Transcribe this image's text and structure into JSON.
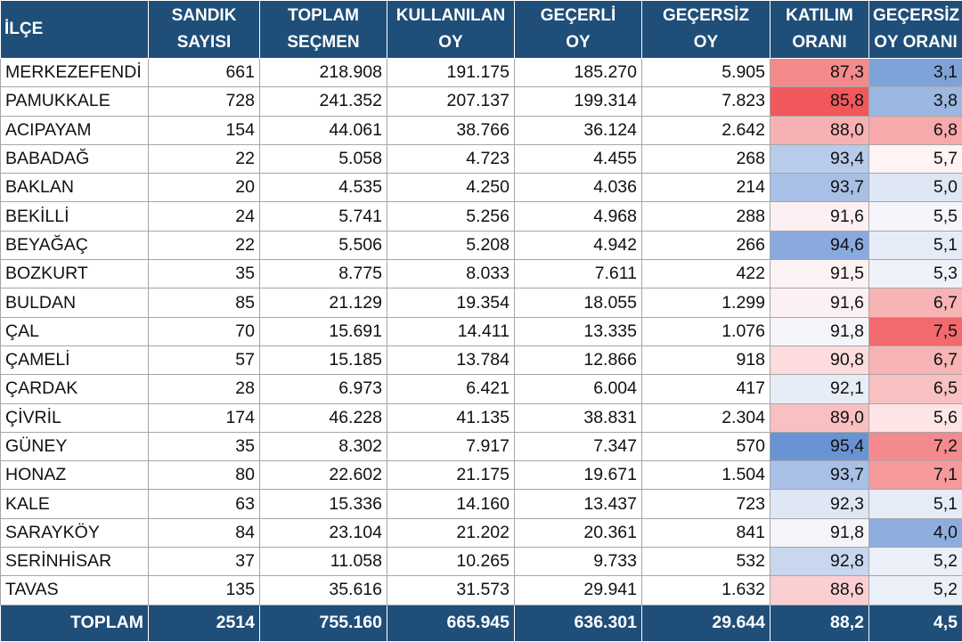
{
  "headers": [
    [
      "İLÇE"
    ],
    [
      "SANDIK",
      "SAYISI"
    ],
    [
      "TOPLAM",
      "SEÇMEN"
    ],
    [
      "KULLANILAN",
      "OY"
    ],
    [
      "GEÇERLİ",
      "OY"
    ],
    [
      "GEÇERSİZ",
      "OY"
    ],
    [
      "KATILIM",
      "ORANI"
    ],
    [
      "GEÇERSİZ",
      "OY ORANI"
    ]
  ],
  "rows": [
    [
      "MERKEZEFENDİ",
      "661",
      "218.908",
      "191.175",
      "185.270",
      "5.905",
      "87,3",
      "3,1"
    ],
    [
      "PAMUKKALE",
      "728",
      "241.352",
      "207.137",
      "199.314",
      "7.823",
      "85,8",
      "3,8"
    ],
    [
      "ACIPAYAM",
      "154",
      "44.061",
      "38.766",
      "36.124",
      "2.642",
      "88,0",
      "6,8"
    ],
    [
      "BABADAĞ",
      "22",
      "5.058",
      "4.723",
      "4.455",
      "268",
      "93,4",
      "5,7"
    ],
    [
      "BAKLAN",
      "20",
      "4.535",
      "4.250",
      "4.036",
      "214",
      "93,7",
      "5,0"
    ],
    [
      "BEKİLLİ",
      "24",
      "5.741",
      "5.256",
      "4.968",
      "288",
      "91,6",
      "5,5"
    ],
    [
      "BEYAĞAÇ",
      "22",
      "5.506",
      "5.208",
      "4.942",
      "266",
      "94,6",
      "5,1"
    ],
    [
      "BOZKURT",
      "35",
      "8.775",
      "8.033",
      "7.611",
      "422",
      "91,5",
      "5,3"
    ],
    [
      "BULDAN",
      "85",
      "21.129",
      "19.354",
      "18.055",
      "1.299",
      "91,6",
      "6,7"
    ],
    [
      "ÇAL",
      "70",
      "15.691",
      "14.411",
      "13.335",
      "1.076",
      "91,8",
      "7,5"
    ],
    [
      "ÇAMELİ",
      "57",
      "15.185",
      "13.784",
      "12.866",
      "918",
      "90,8",
      "6,7"
    ],
    [
      "ÇARDAK",
      "28",
      "6.973",
      "6.421",
      "6.004",
      "417",
      "92,1",
      "6,5"
    ],
    [
      "ÇİVRİL",
      "174",
      "46.228",
      "41.135",
      "38.831",
      "2.304",
      "89,0",
      "5,6"
    ],
    [
      "GÜNEY",
      "35",
      "8.302",
      "7.917",
      "7.347",
      "570",
      "95,4",
      "7,2"
    ],
    [
      "HONAZ",
      "80",
      "22.602",
      "21.175",
      "19.671",
      "1.504",
      "93,7",
      "7,1"
    ],
    [
      "KALE",
      "63",
      "15.336",
      "14.160",
      "13.437",
      "723",
      "92,3",
      "5,1"
    ],
    [
      "SARAYKÖY",
      "84",
      "23.104",
      "21.202",
      "20.361",
      "841",
      "91,8",
      "4,0"
    ],
    [
      "SERİNHİSAR",
      "37",
      "11.058",
      "10.265",
      "9.733",
      "532",
      "92,8",
      "5,2"
    ],
    [
      "TAVAS",
      "135",
      "35.616",
      "31.573",
      "29.941",
      "1.632",
      "88,6",
      "5,2"
    ]
  ],
  "heat_colors": [
    [
      "#f58a8d",
      "#7ea3d9"
    ],
    [
      "#f0585c",
      "#9bb7e2"
    ],
    [
      "#f8b1b3",
      "#f8a9ab"
    ],
    [
      "#b8cbea",
      "#fff3f3"
    ],
    [
      "#a9c0e6",
      "#dfe7f5"
    ],
    [
      "#fcf0f2",
      "#f5f6fb"
    ],
    [
      "#8aaade",
      "#e6ecf7"
    ],
    [
      "#fbf2f4",
      "#f0f2f9"
    ],
    [
      "#fcf0f2",
      "#f8b3b5"
    ],
    [
      "#f4f4fa",
      "#f26a6d"
    ],
    [
      "#fddcde",
      "#f8b3b5"
    ],
    [
      "#e6edf7",
      "#f9c0c2"
    ],
    [
      "#f9c0c2",
      "#fde5e6"
    ],
    [
      "#6a93d3",
      "#f48a8d"
    ],
    [
      "#a9c0e6",
      "#f6999b"
    ],
    [
      "#dfe7f5",
      "#e6ecf7"
    ],
    [
      "#f4f4fa",
      "#8eaddf"
    ],
    [
      "#c8d6ee",
      "#ebeff8"
    ],
    [
      "#fbcfd1",
      "#ebeff8"
    ]
  ],
  "totals": [
    "TOPLAM",
    "2514",
    "755.160",
    "665.945",
    "636.301",
    "29.644",
    "88,2",
    "4,5"
  ]
}
